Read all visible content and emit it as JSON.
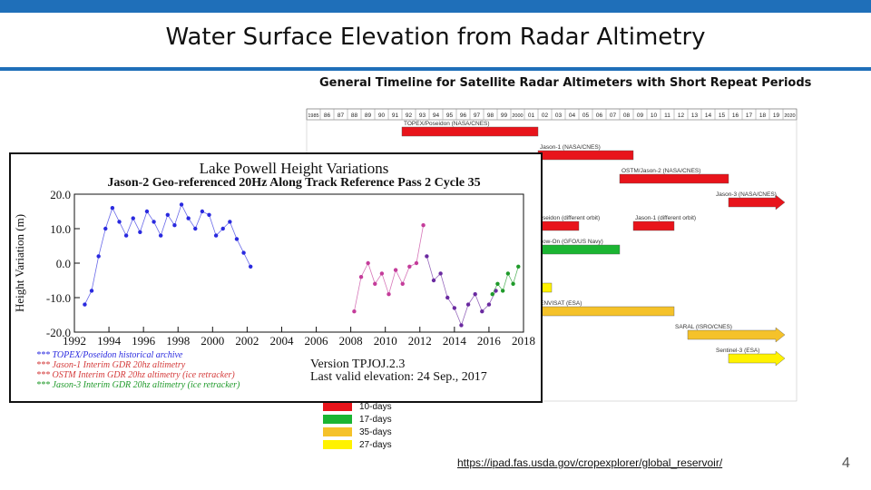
{
  "slide": {
    "title": "Water Surface Elevation from Radar Altimetry",
    "url": "https://ipad.fas.usda.gov/cropexplorer/global_reservoir/",
    "page_number": "4"
  },
  "colors": {
    "accent_blue": "#1f6fb9",
    "red": "#e8141b",
    "green": "#1bb532",
    "orange": "#f5c22a",
    "yellow": "#fff200"
  },
  "chart_data": [
    {
      "type": "bar",
      "title": "General Timeline for Satellite Radar Altimeters with Short Repeat Periods",
      "years": [
        "1985",
        "86",
        "87",
        "88",
        "89",
        "90",
        "91",
        "92",
        "93",
        "94",
        "95",
        "96",
        "97",
        "98",
        "99",
        "2000",
        "01",
        "02",
        "03",
        "04",
        "05",
        "06",
        "07",
        "08",
        "09",
        "10",
        "11",
        "12",
        "13",
        "14",
        "15",
        "16",
        "17",
        "18",
        "19",
        "2020"
      ],
      "missions": [
        {
          "label": "TOPEX/Poseidon (NASA/CNES)",
          "start": 1992,
          "end": 2002,
          "repeat": "10-days",
          "row": 0
        },
        {
          "label": "Jason-1 (NASA/CNES)",
          "start": 2002,
          "end": 2009,
          "repeat": "10-days",
          "row": 1
        },
        {
          "label": "OSTM/Jason-2 (NASA/CNES)",
          "start": 2008,
          "end": 2016,
          "repeat": "10-days",
          "row": 2
        },
        {
          "label": "Jason-3 (NASA/CNES)",
          "start": 2016,
          "end": 2020,
          "repeat": "10-days",
          "row": 3
        },
        {
          "label": "",
          "start": 2002,
          "end": 2005,
          "repeat": "10-days",
          "row": 4
        },
        {
          "label": "Jason-1 (different orbit)",
          "start": 2009,
          "end": 2012,
          "repeat": "10-days",
          "row": 4
        },
        {
          "label": "",
          "start": 2000,
          "end": 2008,
          "repeat": "17-days",
          "row": 5
        },
        {
          "label": "",
          "start": 2002,
          "end": 2003,
          "repeat": "27-days",
          "row": 6
        },
        {
          "label": "ENVISAT (ESA)",
          "start": 2002,
          "end": 2012,
          "repeat": "35-days",
          "row": 7
        },
        {
          "label": "SARAL (ISRO/CNES)",
          "start": 2013,
          "end": 2020,
          "repeat": "35-days",
          "row": 8
        },
        {
          "label": "Sentinel-3 (ESA)",
          "start": 2016,
          "end": 2020,
          "repeat": "27-days",
          "row": 9
        }
      ],
      "partial_labels": [
        {
          "text": "seidon (different orbit)",
          "row": 4
        },
        {
          "text": "ow-On (GFO/US Navy)",
          "row": 5
        }
      ],
      "legend": [
        {
          "label": "10-days",
          "color": "#e8141b"
        },
        {
          "label": "17-days",
          "color": "#1bb532"
        },
        {
          "label": "35-days",
          "color": "#f5c22a"
        },
        {
          "label": "27-days",
          "color": "#fff200"
        }
      ]
    },
    {
      "type": "scatter",
      "title": "Lake Powell Height Variations",
      "subtitle": "Jason-2 Geo-referenced 20Hz Along Track Reference Pass  2 Cycle  35",
      "ylabel": "Height Variation (m)",
      "xlim": [
        1992,
        2018
      ],
      "ylim": [
        -20,
        20
      ],
      "xticks": [
        "1992",
        "1994",
        "1996",
        "1998",
        "2000",
        "2002",
        "2004",
        "2006",
        "2008",
        "2010",
        "2012",
        "2014",
        "2016",
        "2018"
      ],
      "yticks": [
        "20.0",
        "10.0",
        "0.0",
        "-10.0",
        "-20.0"
      ],
      "series": [
        {
          "name": "TOPEX/Poseidon historical archive",
          "color": "#2a2adf",
          "x": [
            1992.6,
            1993.0,
            1993.4,
            1993.8,
            1994.2,
            1994.6,
            1995.0,
            1995.4,
            1995.8,
            1996.2,
            1996.6,
            1997.0,
            1997.4,
            1997.8,
            1998.2,
            1998.6,
            1999.0,
            1999.4,
            1999.8,
            2000.2,
            2000.6,
            2001.0,
            2001.4,
            2001.8,
            2002.2
          ],
          "y": [
            -12,
            -8,
            2,
            10,
            16,
            12,
            8,
            13,
            9,
            15,
            12,
            8,
            14,
            11,
            17,
            13,
            10,
            15,
            14,
            8,
            10,
            12,
            7,
            3,
            -1
          ]
        },
        {
          "name": "Jason-1 Interim GDR 20hz altimetry",
          "color": "#c43c9a",
          "x": [
            2008.2,
            2008.6,
            2009.0,
            2009.4,
            2009.8,
            2010.2,
            2010.6,
            2011.0,
            2011.4,
            2011.8,
            2012.2
          ],
          "y": [
            -14,
            -4,
            0,
            -6,
            -3,
            -9,
            -2,
            -6,
            -1,
            0,
            11
          ]
        },
        {
          "name": "OSTM  Interim GDR 20hz altimetry (ice retracker)",
          "color": "#6a2aa0",
          "x": [
            2012.4,
            2012.8,
            2013.2,
            2013.6,
            2014.0,
            2014.4,
            2014.8,
            2015.2,
            2015.6,
            2016.0,
            2016.4
          ],
          "y": [
            2,
            -5,
            -3,
            -10,
            -13,
            -18,
            -12,
            -9,
            -14,
            -12,
            -8
          ]
        },
        {
          "name": "Jason-3  Interim GDR 20hz altimetry (ice retracker)",
          "color": "#1f9a2a",
          "x": [
            2016.2,
            2016.5,
            2016.8,
            2017.1,
            2017.4,
            2017.7
          ],
          "y": [
            -9,
            -6,
            -8,
            -3,
            -6,
            -1
          ]
        }
      ],
      "notes": [
        {
          "text": "*** TOPEX/Poseidon historical archive",
          "color": "#2a2adf"
        },
        {
          "text": "*** Jason-1  Interim GDR 20hz altimetry",
          "color": "#d43a3a"
        },
        {
          "text": "*** OSTM  Interim GDR 20hz altimetry (ice retracker)",
          "color": "#d43a3a"
        },
        {
          "text": "*** Jason-3  Interim GDR 20hz altimetry (ice retracker)",
          "color": "#1f9a2a"
        }
      ],
      "version": "Version TPJOJ.2.3",
      "last_valid": "Last valid elevation: 24 Sep., 2017"
    }
  ]
}
